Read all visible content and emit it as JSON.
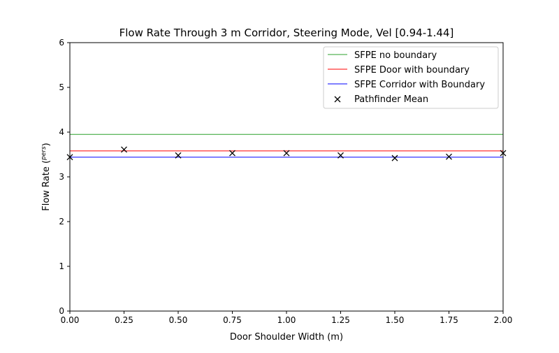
{
  "chart_data": {
    "type": "line",
    "title": "Flow Rate Through 3 m Corridor, Steering Mode, Vel [0.94-1.44]",
    "xlabel": "Door Shoulder Width (m)",
    "ylabel_main": "Flow Rate (",
    "ylabel_frac_num": "pers",
    "ylabel_frac_den": "s",
    "ylabel_close": ")",
    "xlim": [
      0,
      2
    ],
    "ylim": [
      0,
      6
    ],
    "xticks": [
      "0.00",
      "0.25",
      "0.50",
      "0.75",
      "1.00",
      "1.25",
      "1.50",
      "1.75",
      "2.00"
    ],
    "yticks": [
      "0",
      "1",
      "2",
      "3",
      "4",
      "5",
      "6"
    ],
    "grid": false,
    "legend_placement": "top-right",
    "series": [
      {
        "name": "SFPE no boundary",
        "kind": "hline",
        "value": 3.95,
        "color": "#2ca02c"
      },
      {
        "name": "SFPE Door with boundary",
        "kind": "hline",
        "value": 3.58,
        "color": "#ff0000"
      },
      {
        "name": "SFPE Corridor with Boundary",
        "kind": "hline",
        "value": 3.44,
        "color": "#0000ff"
      },
      {
        "name": "Pathfinder Mean",
        "kind": "scatter",
        "marker": "x",
        "color": "#000000",
        "x": [
          0,
          0.25,
          0.5,
          0.75,
          1.0,
          1.25,
          1.5,
          1.75,
          2.0
        ],
        "y": [
          3.44,
          3.61,
          3.48,
          3.53,
          3.53,
          3.48,
          3.42,
          3.45,
          3.53
        ]
      }
    ]
  }
}
